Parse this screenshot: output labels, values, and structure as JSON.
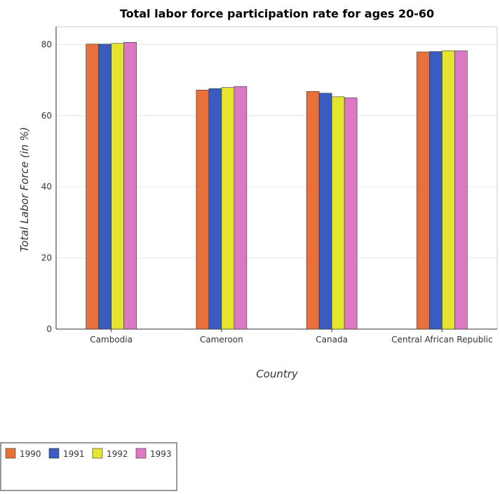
{
  "chart_data": {
    "type": "bar",
    "title": "Total labor force participation rate for ages 20-60",
    "xlabel": "Country",
    "ylabel": "Total Labor Force (in %)",
    "categories": [
      "Cambodia",
      "Cameroon",
      "Canada",
      "Central African Republic"
    ],
    "series": [
      {
        "name": "1990",
        "color": "#e8703a",
        "values": [
          80.1,
          67.2,
          66.8,
          77.9
        ]
      },
      {
        "name": "1991",
        "color": "#3a5bbf",
        "values": [
          80.1,
          67.6,
          66.3,
          78.0
        ]
      },
      {
        "name": "1992",
        "color": "#e5e52e",
        "values": [
          80.3,
          67.9,
          65.3,
          78.2
        ]
      },
      {
        "name": "1993",
        "color": "#dc78c4",
        "values": [
          80.6,
          68.2,
          65.0,
          78.2
        ]
      }
    ],
    "ylim": [
      0,
      85
    ],
    "yticks": [
      0,
      20,
      40,
      60,
      80
    ],
    "grid": true,
    "legend_position": "bottom-left"
  }
}
